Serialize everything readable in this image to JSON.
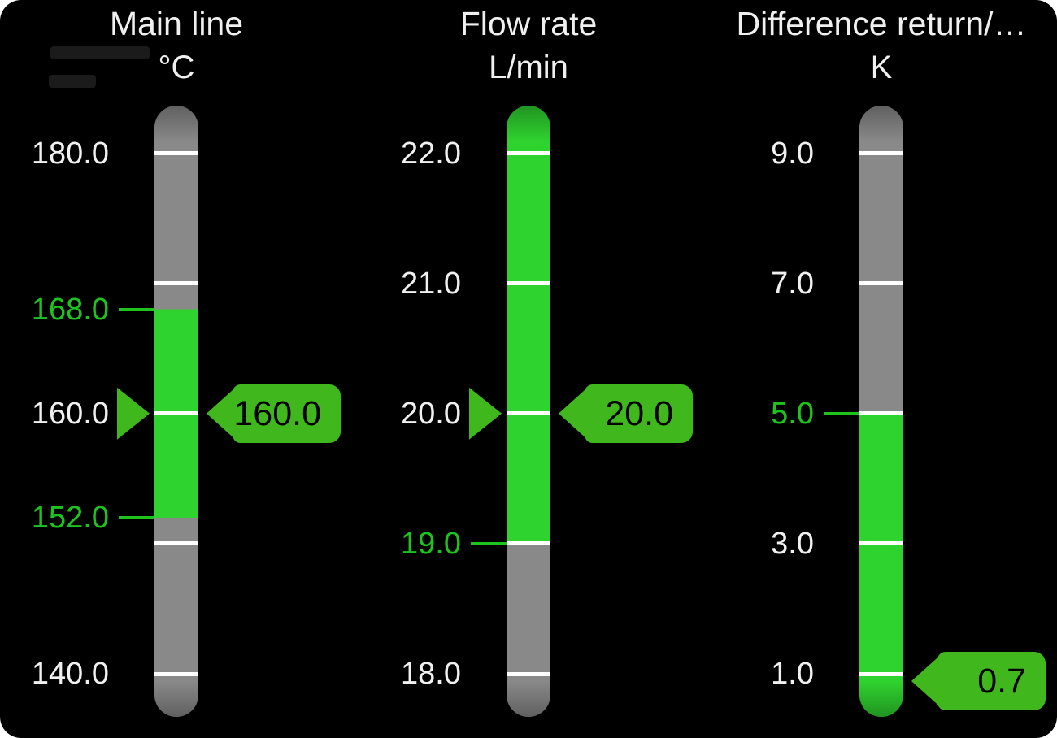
{
  "panel": {
    "background": "#000000",
    "page_background": "#ffffff"
  },
  "colors": {
    "bar_gray": "#898989",
    "bar_green": "#2fd32f",
    "marker_green": "#41b71e",
    "limit_green": "#1ec41e",
    "tick_white": "#ffffff",
    "label_white": "#f0f0f0",
    "badge_text": "#000000"
  },
  "chart_data": [
    {
      "type": "bar",
      "title": "Main line",
      "unit": "°C",
      "orientation": "vertical-gauge",
      "axis_range": [
        140.0,
        180.0
      ],
      "ticks": [
        180,
        170,
        160,
        150,
        140
      ],
      "labeled_ticks": [
        "180.0",
        "160.0",
        "140.0"
      ],
      "limit_high": 168.0,
      "limit_low": 152.0,
      "value": 160.0
    },
    {
      "type": "bar",
      "title": "Flow rate",
      "unit": "L/min",
      "orientation": "vertical-gauge",
      "axis_range": [
        18.0,
        22.0
      ],
      "ticks": [
        22,
        21,
        20,
        19,
        18
      ],
      "labeled_ticks": [
        "22.0",
        "21.0",
        "20.0",
        "18.0"
      ],
      "limit_low": 19.0,
      "value": 20.0
    },
    {
      "type": "bar",
      "title": "Difference return/…",
      "unit": "K",
      "orientation": "vertical-gauge",
      "axis_range": [
        1.0,
        9.0
      ],
      "ticks": [
        9,
        7,
        5,
        3,
        1
      ],
      "labeled_ticks": [
        "9.0",
        "7.0",
        "3.0",
        "1.0"
      ],
      "limit_high": 5.0,
      "value": 0.7
    }
  ],
  "gauges": [
    {
      "title": "Main line",
      "unit": "°C",
      "scale_max": 180.0,
      "scale_min": 140.0,
      "ticks": [
        180,
        170,
        160,
        150,
        140
      ],
      "tick_labels": [
        {
          "v": 180,
          "t": "180.0"
        },
        {
          "v": 160,
          "t": "160.0"
        },
        {
          "v": 140,
          "t": "140.0"
        }
      ],
      "limit_labels": [
        {
          "v": 168,
          "t": "168.0"
        },
        {
          "v": 152,
          "t": "152.0"
        }
      ],
      "green_from": 168,
      "green_to": 152,
      "value": 160.0,
      "value_text": "160.0",
      "pointer": true
    },
    {
      "title": "Flow rate",
      "unit": "L/min",
      "scale_max": 22.0,
      "scale_min": 18.0,
      "ticks": [
        22,
        21,
        20,
        19,
        18
      ],
      "tick_labels": [
        {
          "v": 22,
          "t": "22.0"
        },
        {
          "v": 21,
          "t": "21.0"
        },
        {
          "v": 20,
          "t": "20.0"
        },
        {
          "v": 18,
          "t": "18.0"
        }
      ],
      "limit_labels": [
        {
          "v": 19,
          "t": "19.0"
        }
      ],
      "green_from": null,
      "green_to": 19,
      "value": 20.0,
      "value_text": "20.0",
      "pointer": true
    },
    {
      "title": "Difference return/…",
      "unit": "K",
      "scale_max": 9.0,
      "scale_min": 1.0,
      "ticks": [
        9,
        7,
        5,
        3,
        1
      ],
      "tick_labels": [
        {
          "v": 9,
          "t": "9.0"
        },
        {
          "v": 7,
          "t": "7.0"
        },
        {
          "v": 3,
          "t": "3.0"
        },
        {
          "v": 1,
          "t": "1.0"
        }
      ],
      "limit_labels": [
        {
          "v": 5,
          "t": "5.0"
        }
      ],
      "green_from": 5,
      "green_to": null,
      "value": 0.7,
      "value_text": "0.7",
      "pointer": false
    }
  ]
}
